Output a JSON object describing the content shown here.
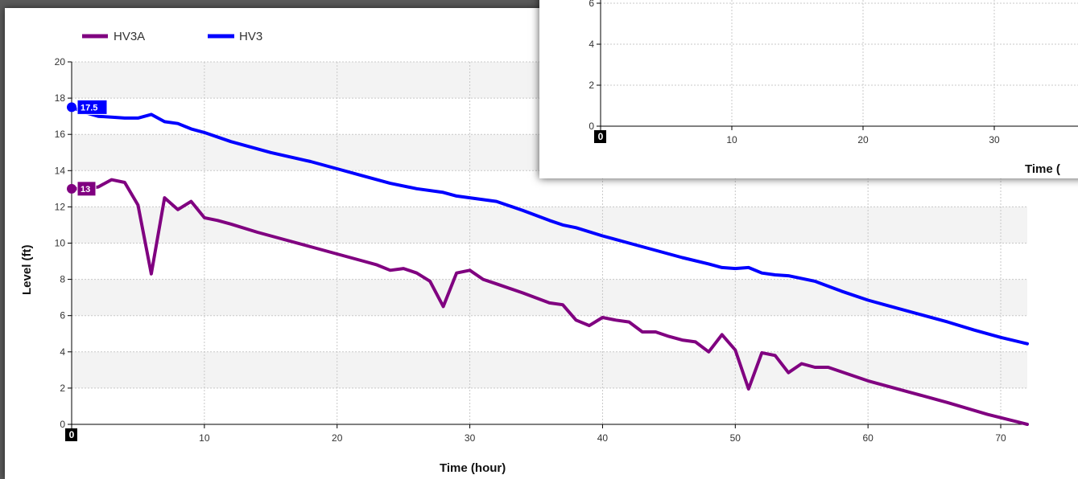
{
  "chart_data": [
    {
      "type": "line",
      "title": "",
      "xlabel": "Time (hour)",
      "ylabel": "Level (ft)",
      "xlim": [
        0,
        72
      ],
      "ylim": [
        0,
        20
      ],
      "x_ticks": [
        0,
        10,
        20,
        30,
        40,
        50,
        60,
        70
      ],
      "y_ticks": [
        0,
        2,
        4,
        6,
        8,
        10,
        12,
        14,
        16,
        18,
        20
      ],
      "grid": true,
      "legend_placement": "top-left",
      "series": [
        {
          "name": "HV3A",
          "color": "#800080",
          "start_label": "13",
          "points": [
            [
              0,
              13
            ],
            [
              1,
              13
            ],
            [
              2,
              13.1
            ],
            [
              3,
              13.5
            ],
            [
              4,
              13.35
            ],
            [
              5,
              12.1
            ],
            [
              6,
              8.3
            ],
            [
              7,
              12.5
            ],
            [
              8,
              11.85
            ],
            [
              9,
              12.3
            ],
            [
              10,
              11.4
            ],
            [
              11,
              11.25
            ],
            [
              12,
              11.05
            ],
            [
              14,
              10.6
            ],
            [
              16,
              10.2
            ],
            [
              18,
              9.8
            ],
            [
              20,
              9.4
            ],
            [
              22,
              9.0
            ],
            [
              23,
              8.8
            ],
            [
              24,
              8.5
            ],
            [
              25,
              8.6
            ],
            [
              26,
              8.35
            ],
            [
              27,
              7.9
            ],
            [
              28,
              6.5
            ],
            [
              29,
              8.35
            ],
            [
              30,
              8.5
            ],
            [
              31,
              8.0
            ],
            [
              32,
              7.75
            ],
            [
              34,
              7.25
            ],
            [
              36,
              6.7
            ],
            [
              37,
              6.6
            ],
            [
              38,
              5.75
            ],
            [
              39,
              5.45
            ],
            [
              40,
              5.9
            ],
            [
              41,
              5.75
            ],
            [
              42,
              5.65
            ],
            [
              43,
              5.1
            ],
            [
              44,
              5.1
            ],
            [
              45,
              4.85
            ],
            [
              46,
              4.65
            ],
            [
              47,
              4.55
            ],
            [
              48,
              4.0
            ],
            [
              49,
              4.95
            ],
            [
              50,
              4.1
            ],
            [
              51,
              1.95
            ],
            [
              52,
              3.95
            ],
            [
              53,
              3.8
            ],
            [
              54,
              2.85
            ],
            [
              55,
              3.35
            ],
            [
              56,
              3.15
            ],
            [
              57,
              3.15
            ],
            [
              58,
              2.9
            ],
            [
              60,
              2.4
            ],
            [
              63,
              1.8
            ],
            [
              66,
              1.2
            ],
            [
              69,
              0.55
            ],
            [
              72,
              0.0
            ]
          ]
        },
        {
          "name": "HV3",
          "color": "#0000ff",
          "start_label": "17.5",
          "points": [
            [
              0,
              17.5
            ],
            [
              1,
              17.2
            ],
            [
              2,
              17.0
            ],
            [
              3,
              16.95
            ],
            [
              4,
              16.9
            ],
            [
              5,
              16.9
            ],
            [
              6,
              17.1
            ],
            [
              7,
              16.7
            ],
            [
              8,
              16.6
            ],
            [
              9,
              16.3
            ],
            [
              10,
              16.1
            ],
            [
              12,
              15.6
            ],
            [
              15,
              15.0
            ],
            [
              18,
              14.5
            ],
            [
              20,
              14.1
            ],
            [
              22,
              13.7
            ],
            [
              24,
              13.3
            ],
            [
              26,
              13.0
            ],
            [
              28,
              12.8
            ],
            [
              29,
              12.6
            ],
            [
              31,
              12.4
            ],
            [
              32,
              12.3
            ],
            [
              34,
              11.8
            ],
            [
              36,
              11.25
            ],
            [
              37,
              11.0
            ],
            [
              38,
              10.85
            ],
            [
              40,
              10.4
            ],
            [
              42,
              10.0
            ],
            [
              44,
              9.6
            ],
            [
              46,
              9.2
            ],
            [
              48,
              8.85
            ],
            [
              49,
              8.65
            ],
            [
              50,
              8.6
            ],
            [
              51,
              8.65
            ],
            [
              52,
              8.35
            ],
            [
              53,
              8.25
            ],
            [
              54,
              8.2
            ],
            [
              56,
              7.9
            ],
            [
              58,
              7.35
            ],
            [
              60,
              6.85
            ],
            [
              62,
              6.45
            ],
            [
              64,
              6.05
            ],
            [
              66,
              5.65
            ],
            [
              68,
              5.2
            ],
            [
              70,
              4.8
            ],
            [
              72,
              4.45
            ]
          ]
        }
      ]
    },
    {
      "type": "line",
      "title": "",
      "xlabel": "Time (",
      "ylabel": "",
      "visible_y_ticks": [
        0,
        2,
        4,
        6
      ],
      "visible_x_ticks": [
        0,
        10,
        20,
        30
      ],
      "grid": true,
      "series": []
    }
  ]
}
